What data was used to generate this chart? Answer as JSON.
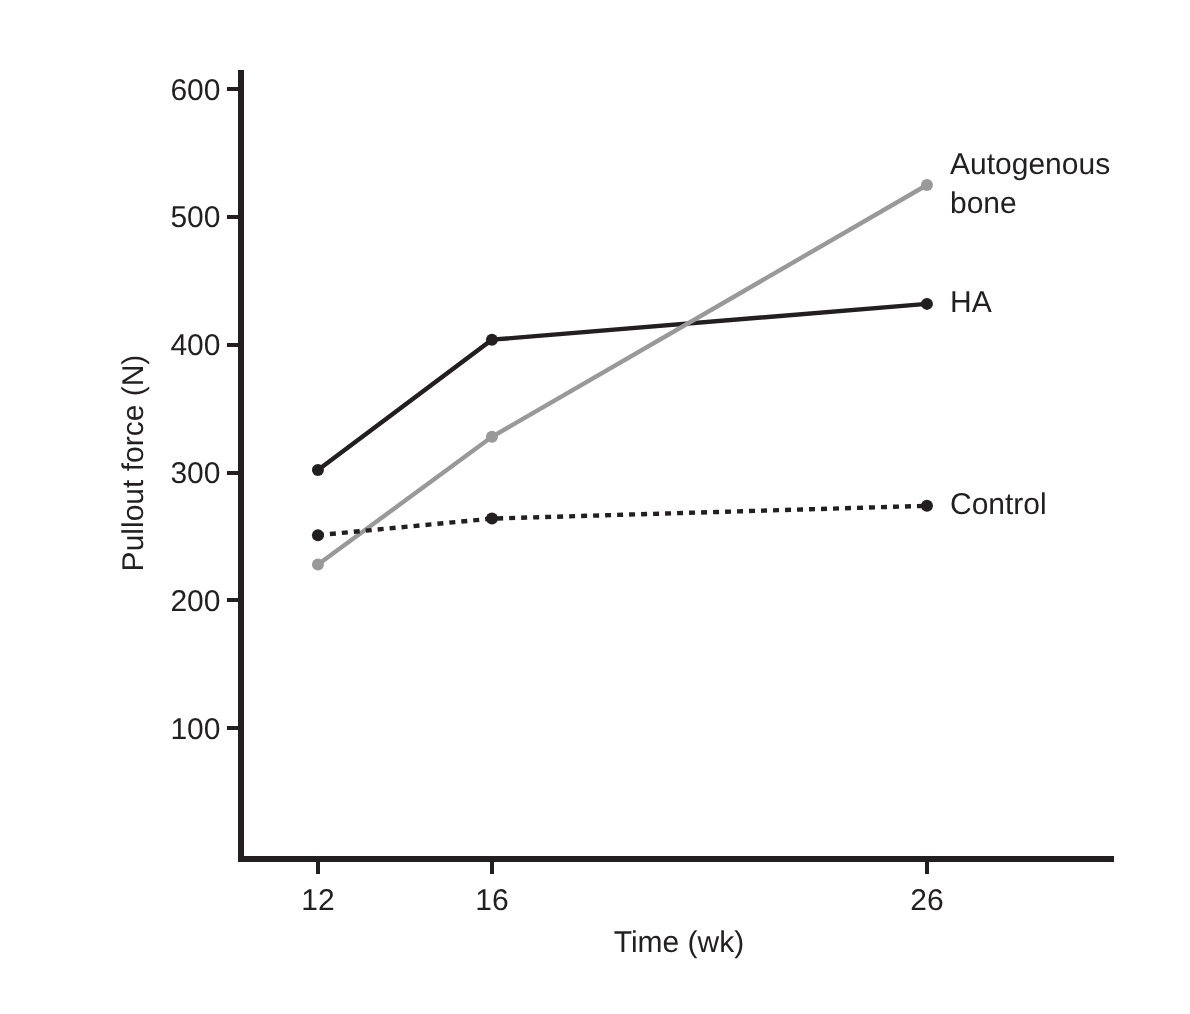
{
  "chart_data": {
    "type": "line",
    "xlabel": "Time (wk)",
    "ylabel": "Pullout force (N)",
    "x": [
      12,
      16,
      26
    ],
    "xlim": [
      10.3,
      30.3
    ],
    "xticks": [
      12,
      16,
      26
    ],
    "ylim": [
      0,
      615
    ],
    "yticks": [
      100,
      200,
      300,
      400,
      500,
      600
    ],
    "legend": false,
    "marker": "circle",
    "series": [
      {
        "name": "HA",
        "color": "#231f20",
        "values": [
          302,
          404,
          432
        ],
        "line_style": "solid"
      },
      {
        "name": "Autogenous\nbone",
        "color": "#999999",
        "values": [
          228,
          328,
          525
        ],
        "line_style": "solid"
      },
      {
        "name": "Control",
        "color": "#231f20",
        "values": [
          251,
          264,
          274
        ],
        "line_style": "dotted"
      }
    ]
  }
}
